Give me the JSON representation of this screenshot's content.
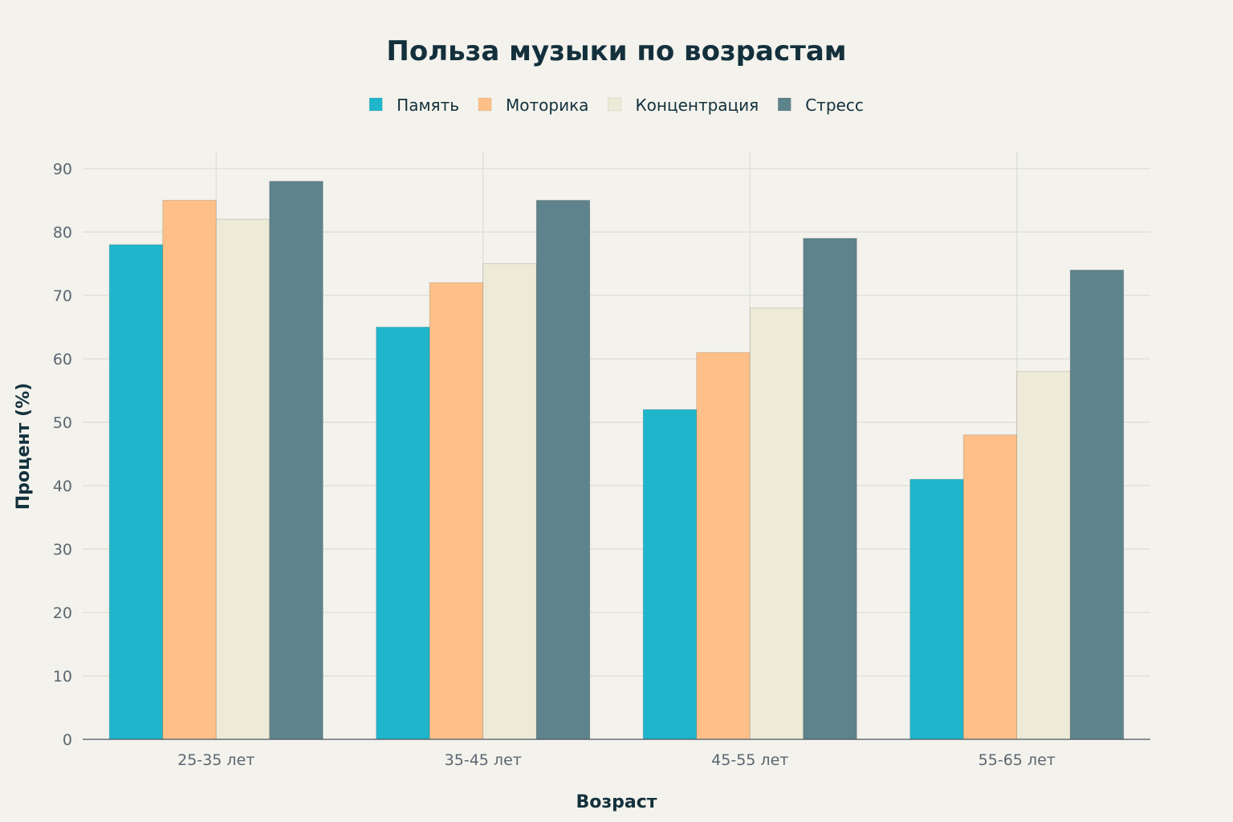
{
  "chart_data": {
    "type": "bar",
    "title": "Польза музыки по возрастам",
    "xlabel": "Возраст",
    "ylabel": "Процент (%)",
    "categories": [
      "25-35 лет",
      "35-45 лет",
      "45-55 лет",
      "55-65 лет"
    ],
    "series": [
      {
        "name": "Память",
        "color": "#1fb6cb",
        "values": [
          78,
          65,
          52,
          41
        ]
      },
      {
        "name": "Моторика",
        "color": "#fec088",
        "values": [
          85,
          72,
          61,
          48
        ]
      },
      {
        "name": "Концентрация",
        "color": "#edebd8",
        "values": [
          82,
          75,
          68,
          58
        ]
      },
      {
        "name": "Стресс",
        "color": "#5e838c",
        "values": [
          88,
          85,
          79,
          74
        ]
      }
    ],
    "ylim": [
      0,
      90
    ],
    "yticks": [
      0,
      10,
      20,
      30,
      40,
      50,
      60,
      70,
      80,
      90
    ],
    "grid": true,
    "legend": "top-center"
  }
}
